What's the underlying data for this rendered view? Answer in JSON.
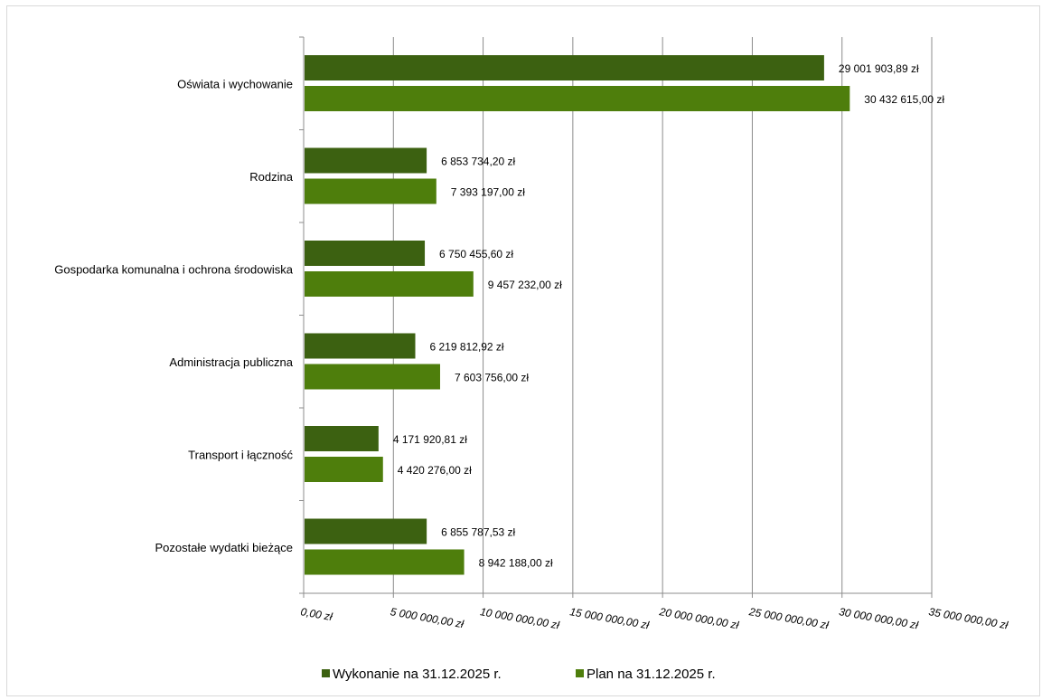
{
  "chart_data": {
    "type": "bar",
    "orientation": "horizontal",
    "categories": [
      "Oświata i wychowanie",
      "Rodzina",
      "Gospodarka komunalna i ochrona środowiska",
      "Administracja publiczna",
      "Transport i łączność",
      "Pozostałe wydatki bieżące"
    ],
    "series": [
      {
        "name": "Wykonanie na 31.12.2025 r.",
        "color": "#3c6111",
        "values": [
          29001903.89,
          6853734.2,
          6750455.6,
          6219812.92,
          4171920.81,
          6855787.53
        ],
        "labels": [
          "29 001 903,89 zł",
          "6 853 734,20 zł",
          "6 750 455,60 zł",
          "6 219 812,92 zł",
          "4 171 920,81 zł",
          "6 855 787,53 zł"
        ]
      },
      {
        "name": "Plan na 31.12.2025 r.",
        "color": "#4e7e0c",
        "values": [
          30432615.0,
          7393197.0,
          9457232.0,
          7603756.0,
          4420276.0,
          8942188.0
        ],
        "labels": [
          "30 432 615,00 zł",
          "7 393 197,00 zł",
          "9 457 232,00 zł",
          "7 603 756,00 zł",
          "4 420 276,00 zł",
          "8 942 188,00 zł"
        ]
      }
    ],
    "xlim": [
      0,
      35000000
    ],
    "x_ticks": [
      0,
      5000000,
      10000000,
      15000000,
      20000000,
      25000000,
      30000000,
      35000000
    ],
    "x_tick_labels": [
      "0,00 zł",
      "5 000 000,00 zł",
      "10 000 000,00 zł",
      "15 000 000,00 zł",
      "20 000 000,00 zł",
      "25 000 000,00 zł",
      "30 000 000,00 zł",
      "35 000 000,00 zł"
    ],
    "grid": true,
    "legend": "bottom",
    "title": "",
    "xlabel": "",
    "ylabel": ""
  }
}
